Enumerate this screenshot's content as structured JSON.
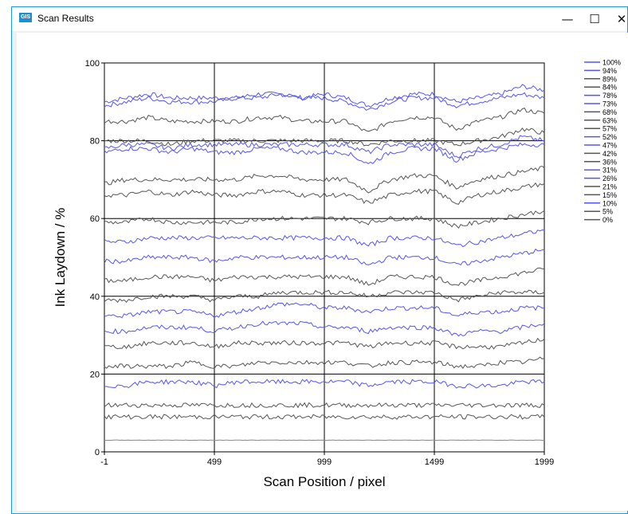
{
  "window": {
    "title": "Scan Results",
    "icon_text": "GIS",
    "minimize_glyph": "—",
    "maximize_glyph": "☐",
    "close_glyph": "✕"
  },
  "chart_data": {
    "type": "line",
    "title": "",
    "xlabel": "Scan Position / pixel",
    "ylabel": "Ink Laydown / %",
    "xlim": [
      -1,
      1999
    ],
    "ylim": [
      0,
      100
    ],
    "xticks": [
      -1,
      499,
      999,
      1499,
      1999
    ],
    "yticks": [
      0,
      20,
      40,
      60,
      80,
      100
    ],
    "grid": true,
    "legend_position": "top-right",
    "colors": {
      "blue": "#5555ee",
      "gray": "#555555"
    },
    "x": [
      -1,
      99,
      199,
      299,
      399,
      499,
      599,
      699,
      799,
      899,
      999,
      1099,
      1199,
      1299,
      1399,
      1499,
      1599,
      1699,
      1799,
      1899,
      1999
    ],
    "series": [
      {
        "name": "100%",
        "color": "#5555ee",
        "values": [
          90,
          91,
          92,
          91,
          91,
          91,
          91,
          92,
          92,
          91,
          92,
          91,
          89,
          91,
          92,
          92,
          90,
          91,
          92,
          94,
          93
        ]
      },
      {
        "name": "94%",
        "color": "#5555ee",
        "values": [
          89,
          90,
          91,
          90,
          90,
          90,
          91,
          91,
          92,
          91,
          91,
          90,
          88,
          90,
          91,
          91,
          89,
          90,
          91,
          92,
          91
        ]
      },
      {
        "name": "89%",
        "color": "#555555",
        "values": [
          85,
          85,
          86,
          85,
          85,
          85,
          85,
          86,
          86,
          85,
          85,
          85,
          82,
          85,
          86,
          86,
          83,
          85,
          86,
          88,
          87
        ]
      },
      {
        "name": "84%",
        "color": "#555555",
        "values": [
          80,
          80,
          80,
          79,
          80,
          80,
          80,
          80,
          80,
          80,
          80,
          80,
          79,
          80,
          80,
          80,
          79,
          80,
          81,
          83,
          82
        ]
      },
      {
        "name": "78%",
        "color": "#5555ee",
        "values": [
          78,
          79,
          79,
          78,
          79,
          79,
          79,
          79,
          79,
          79,
          79,
          79,
          77,
          79,
          79,
          79,
          76,
          78,
          79,
          81,
          80
        ]
      },
      {
        "name": "73%",
        "color": "#5555ee",
        "values": [
          77,
          78,
          78,
          77,
          78,
          77,
          77,
          78,
          78,
          77,
          77,
          77,
          74,
          77,
          78,
          78,
          75,
          77,
          78,
          79,
          79
        ]
      },
      {
        "name": "68%",
        "color": "#555555",
        "values": [
          69,
          70,
          70,
          70,
          70,
          70,
          70,
          71,
          71,
          70,
          70,
          70,
          67,
          70,
          71,
          71,
          68,
          70,
          71,
          72,
          73
        ]
      },
      {
        "name": "63%",
        "color": "#555555",
        "values": [
          66,
          66,
          67,
          66,
          67,
          66,
          66,
          67,
          67,
          66,
          66,
          66,
          64,
          66,
          67,
          67,
          64,
          66,
          67,
          68,
          69
        ]
      },
      {
        "name": "57%",
        "color": "#555555",
        "values": [
          59,
          59,
          60,
          59,
          59,
          59,
          59,
          60,
          60,
          60,
          60,
          60,
          59,
          60,
          60,
          60,
          58,
          59,
          60,
          61,
          62
        ]
      },
      {
        "name": "52%",
        "color": "#5555ee",
        "values": [
          54,
          54,
          55,
          55,
          55,
          55,
          55,
          55,
          55,
          55,
          55,
          55,
          53,
          55,
          55,
          55,
          53,
          54,
          55,
          56,
          57
        ]
      },
      {
        "name": "47%",
        "color": "#5555ee",
        "values": [
          49,
          49,
          50,
          50,
          50,
          49,
          50,
          50,
          50,
          50,
          50,
          50,
          48,
          50,
          50,
          50,
          48,
          49,
          50,
          51,
          52
        ]
      },
      {
        "name": "42%",
        "color": "#555555",
        "values": [
          44,
          44,
          45,
          45,
          45,
          44,
          45,
          45,
          45,
          45,
          45,
          45,
          43,
          45,
          45,
          45,
          43,
          44,
          45,
          46,
          47
        ]
      },
      {
        "name": "36%",
        "color": "#555555",
        "values": [
          39,
          39,
          40,
          40,
          40,
          39,
          40,
          40,
          41,
          41,
          41,
          41,
          40,
          41,
          41,
          41,
          39,
          40,
          41,
          41,
          41
        ]
      },
      {
        "name": "31%",
        "color": "#5555ee",
        "values": [
          35,
          35,
          36,
          36,
          36,
          35,
          36,
          37,
          38,
          38,
          37,
          37,
          36,
          37,
          37,
          37,
          35,
          36,
          36,
          37,
          37
        ]
      },
      {
        "name": "26%",
        "color": "#5555ee",
        "values": [
          31,
          31,
          32,
          32,
          32,
          31,
          32,
          33,
          33,
          33,
          32,
          32,
          31,
          32,
          32,
          32,
          30,
          31,
          31,
          32,
          33
        ]
      },
      {
        "name": "21%",
        "color": "#555555",
        "values": [
          27,
          27,
          28,
          28,
          28,
          27,
          28,
          28,
          28,
          28,
          28,
          28,
          27,
          28,
          28,
          28,
          27,
          27,
          27,
          28,
          29
        ]
      },
      {
        "name": "15%",
        "color": "#555555",
        "values": [
          22,
          22,
          22,
          22,
          23,
          22,
          22,
          23,
          23,
          23,
          23,
          23,
          22,
          23,
          23,
          23,
          22,
          22,
          23,
          23,
          24
        ]
      },
      {
        "name": "10%",
        "color": "#5555ee",
        "values": [
          17,
          17,
          18,
          18,
          18,
          17,
          18,
          18,
          18,
          18,
          18,
          18,
          17,
          18,
          18,
          18,
          17,
          17,
          17,
          18,
          18
        ]
      },
      {
        "name": "5%",
        "color": "#555555",
        "values": [
          12,
          12,
          12,
          12,
          12,
          12,
          12,
          12,
          12,
          12,
          12,
          12,
          12,
          12,
          12,
          12,
          12,
          12,
          12,
          12,
          12
        ]
      },
      {
        "name": "0%",
        "color": "#555555",
        "values": [
          9,
          9,
          9,
          9,
          9,
          9,
          9,
          9,
          9,
          9,
          9,
          9,
          9,
          9,
          9,
          9,
          9,
          9,
          9,
          9,
          9
        ]
      },
      {
        "name": "",
        "color": "#888888",
        "values": [
          3,
          3,
          3,
          3,
          3,
          3,
          3,
          3,
          3,
          3,
          3,
          3,
          3,
          3,
          3,
          3,
          3,
          3,
          3,
          3,
          3
        ]
      }
    ]
  }
}
